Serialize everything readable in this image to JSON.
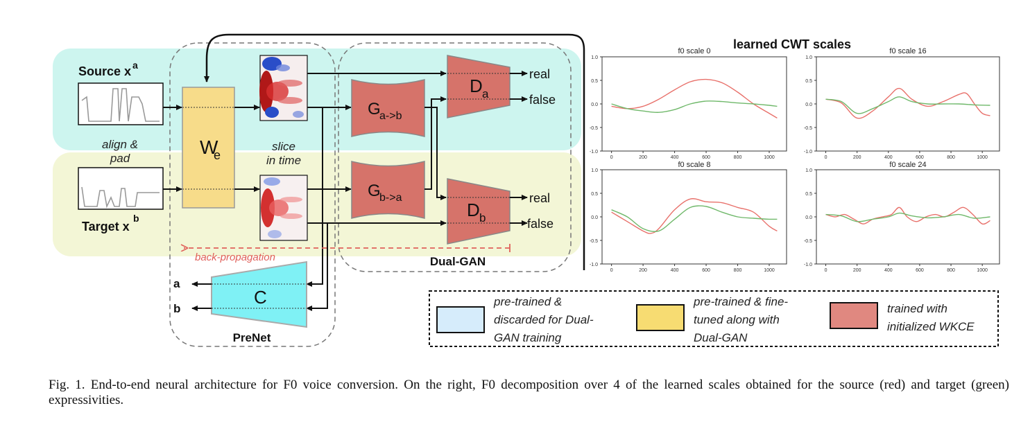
{
  "diagram": {
    "source_label": "Source x",
    "source_sup": "a",
    "target_label": "Target x",
    "target_sup": "b",
    "align_pad": [
      "align &",
      "pad"
    ],
    "slice_time": [
      "slice",
      "in time"
    ],
    "we_label": "W",
    "we_sub": "e",
    "g_ab": {
      "main": "G",
      "sub": "a->b"
    },
    "g_ba": {
      "main": "G",
      "sub": "b->a"
    },
    "d_a": {
      "main": "D",
      "sub": "a"
    },
    "d_b": {
      "main": "D",
      "sub": "b"
    },
    "real": "real",
    "false": "false",
    "dual_gan": "Dual-GAN",
    "prenet": "PreNet",
    "classifier": "C",
    "out_a": "a",
    "out_b": "b",
    "backprop": "back-propagation"
  },
  "legend": [
    {
      "lines": [
        "pre-trained &",
        "discarded for Dual-",
        "GAN training"
      ],
      "color": "#d6ecfb"
    },
    {
      "lines": [
        "pre-trained & fine-",
        "tuned along with",
        "Dual-GAN"
      ],
      "color": "#f7dc72"
    },
    {
      "lines": [
        "trained with",
        "initialized WKCE"
      ],
      "color": "#e08880"
    }
  ],
  "chart_data": {
    "title": "learned CWT scales",
    "type": "line",
    "panels": [
      {
        "title": "f0 scale 0",
        "xlim": [
          0,
          1050
        ],
        "ylim": [
          -1.0,
          1.0
        ],
        "xticks": [
          "0",
          "200",
          "400",
          "600",
          "800",
          "1000"
        ],
        "yticks": [
          "1.0",
          "0.5",
          "0.0",
          "-0.5",
          "-1.0"
        ],
        "series": [
          {
            "color": "#e8706a",
            "x": [
              0,
              100,
              200,
              300,
              400,
              500,
              600,
              700,
              800,
              900,
              1000,
              1050
            ],
            "y": [
              -0.05,
              -0.1,
              -0.05,
              0.1,
              0.3,
              0.47,
              0.52,
              0.45,
              0.25,
              0.0,
              -0.2,
              -0.3
            ]
          },
          {
            "color": "#6fb86a",
            "x": [
              0,
              100,
              200,
              300,
              400,
              500,
              600,
              700,
              800,
              900,
              1000,
              1050
            ],
            "y": [
              0.0,
              -0.1,
              -0.15,
              -0.18,
              -0.12,
              0.0,
              0.06,
              0.05,
              0.02,
              0.0,
              -0.03,
              -0.05
            ]
          }
        ]
      },
      {
        "title": "f0 scale 16",
        "xlim": [
          0,
          1050
        ],
        "ylim": [
          -1.0,
          1.0
        ],
        "xticks": [
          "0",
          "200",
          "400",
          "600",
          "800",
          "1000"
        ],
        "yticks": [
          "1.0",
          "0.5",
          "0.0",
          "-0.5",
          "-1.0"
        ],
        "series": [
          {
            "color": "#e8706a",
            "x": [
              0,
              100,
              200,
              300,
              400,
              470,
              550,
              650,
              750,
              850,
              900,
              950,
              1000,
              1050
            ],
            "y": [
              0.1,
              0.02,
              -0.3,
              -0.15,
              0.15,
              0.33,
              0.1,
              -0.05,
              0.05,
              0.2,
              0.22,
              0.0,
              -0.2,
              -0.25
            ]
          },
          {
            "color": "#6fb86a",
            "x": [
              0,
              100,
              200,
              300,
              400,
              470,
              550,
              650,
              750,
              850,
              950,
              1050
            ],
            "y": [
              0.1,
              0.05,
              -0.2,
              -0.1,
              0.05,
              0.15,
              0.05,
              0.0,
              0.0,
              0.0,
              -0.02,
              -0.03
            ]
          }
        ]
      },
      {
        "title": "f0 scale 8",
        "xlim": [
          0,
          1050
        ],
        "ylim": [
          -1.0,
          1.0
        ],
        "xticks": [
          "0",
          "200",
          "400",
          "600",
          "800",
          "1000"
        ],
        "yticks": [
          "1.0",
          "0.5",
          "0.0",
          "-0.5",
          "-1.0"
        ],
        "series": [
          {
            "color": "#e8706a",
            "x": [
              0,
              100,
              200,
              250,
              300,
              400,
              500,
              600,
              700,
              800,
              900,
              1000,
              1050
            ],
            "y": [
              0.1,
              -0.1,
              -0.3,
              -0.35,
              -0.25,
              0.15,
              0.38,
              0.32,
              0.3,
              0.2,
              0.1,
              -0.2,
              -0.3
            ]
          },
          {
            "color": "#6fb86a",
            "x": [
              0,
              100,
              200,
              300,
              400,
              500,
              600,
              700,
              800,
              900,
              1000,
              1050
            ],
            "y": [
              0.15,
              0.0,
              -0.25,
              -0.3,
              -0.05,
              0.2,
              0.22,
              0.1,
              0.0,
              -0.03,
              -0.05,
              -0.05
            ]
          }
        ]
      },
      {
        "title": "f0 scale 24",
        "xlim": [
          0,
          1050
        ],
        "ylim": [
          -1.0,
          1.0
        ],
        "xticks": [
          "0",
          "200",
          "400",
          "600",
          "800",
          "1000"
        ],
        "yticks": [
          "1.0",
          "0.5",
          "0.0",
          "-0.5",
          "-1.0"
        ],
        "series": [
          {
            "color": "#e8706a",
            "x": [
              0,
              60,
              120,
              180,
              240,
              300,
              360,
              420,
              470,
              520,
              580,
              640,
              700,
              760,
              820,
              880,
              940,
              1000,
              1050
            ],
            "y": [
              0.05,
              0.0,
              0.05,
              -0.05,
              -0.15,
              -0.05,
              0.0,
              0.05,
              0.2,
              0.0,
              -0.1,
              0.0,
              0.05,
              0.0,
              0.1,
              0.2,
              0.05,
              -0.15,
              -0.08
            ]
          },
          {
            "color": "#6fb86a",
            "x": [
              0,
              100,
              200,
              300,
              400,
              470,
              550,
              650,
              750,
              850,
              950,
              1050
            ],
            "y": [
              0.05,
              0.02,
              -0.1,
              -0.05,
              0.0,
              0.08,
              0.02,
              -0.02,
              0.0,
              0.05,
              -0.03,
              0.0
            ]
          }
        ]
      }
    ]
  },
  "caption": {
    "text": "Fig. 1.  End-to-end neural architecture for F0 voice conversion. On the right, F0 decomposition over 4 of the learned scales obtained for the source (red) and target (green) expressivities."
  }
}
